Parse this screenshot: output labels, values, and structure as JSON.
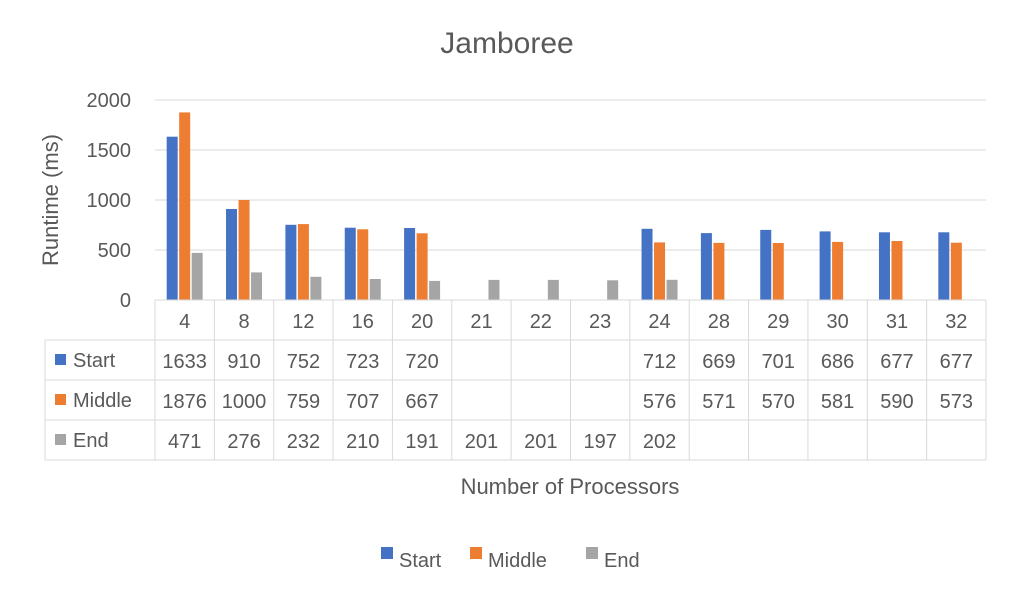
{
  "chart_data": {
    "type": "bar",
    "title": "Jamboree",
    "xlabel": "Number of Processors",
    "ylabel": "Runtime (ms)",
    "ylim": [
      0,
      2000
    ],
    "yticks": [
      0,
      500,
      1000,
      1500,
      2000
    ],
    "grid": true,
    "legend_position": "bottom",
    "data_table": true,
    "categories": [
      "4",
      "8",
      "12",
      "16",
      "20",
      "21",
      "22",
      "23",
      "24",
      "28",
      "29",
      "30",
      "31",
      "32"
    ],
    "series": [
      {
        "name": "Start",
        "color": "#4472C4",
        "values": [
          1633,
          910,
          752,
          723,
          720,
          null,
          null,
          null,
          712,
          669,
          701,
          686,
          677,
          677
        ]
      },
      {
        "name": "Middle",
        "color": "#ED7D31",
        "values": [
          1876,
          1000,
          759,
          707,
          667,
          null,
          null,
          null,
          576,
          571,
          570,
          581,
          590,
          573
        ]
      },
      {
        "name": "End",
        "color": "#A5A5A5",
        "values": [
          471,
          276,
          232,
          210,
          191,
          201,
          201,
          197,
          202,
          null,
          null,
          null,
          null,
          null
        ]
      }
    ]
  }
}
